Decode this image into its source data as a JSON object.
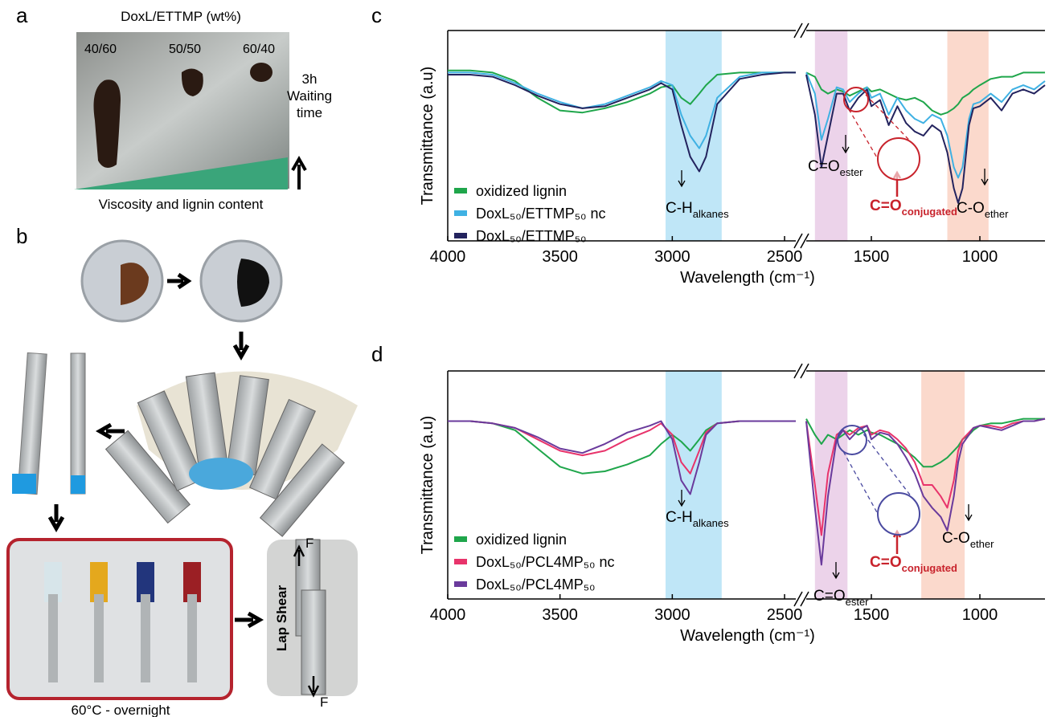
{
  "panels": {
    "a": {
      "label": "a",
      "title": "DoxL/ETTMP (wt%)",
      "samples": [
        "40/60",
        "50/50",
        "60/40"
      ],
      "waiting": [
        "3h",
        "Waiting",
        "time"
      ],
      "gradient": "Viscosity and lignin content"
    },
    "b": {
      "label": "b",
      "cure": "60°C - overnight",
      "test": "Lap Shear",
      "force_top": "F",
      "force_bottom": "F"
    },
    "c": {
      "label": "c"
    },
    "d": {
      "label": "d"
    }
  },
  "chart_data": [
    {
      "type": "line",
      "ylabel": "Transmittance (a.u)",
      "xlabel": "Wavelength (cm⁻¹)",
      "x": [
        4000,
        3900,
        3800,
        3700,
        3600,
        3500,
        3400,
        3300,
        3200,
        3100,
        3050,
        3000,
        2960,
        2920,
        2880,
        2850,
        2800,
        2700,
        2600,
        2500,
        2450,
        2000,
        1800,
        1760,
        1730,
        1700,
        1660,
        1630,
        1600,
        1560,
        1520,
        1500,
        1460,
        1420,
        1380,
        1340,
        1300,
        1260,
        1220,
        1180,
        1150,
        1120,
        1100,
        1080,
        1050,
        1030,
        1000,
        950,
        900,
        850,
        800,
        750,
        700
      ],
      "xlim": [
        [
          4000,
          2450
        ],
        [
          1800,
          700
        ]
      ],
      "xticks": [
        4000,
        3500,
        3000,
        2500,
        1500,
        1000
      ],
      "ylim": [
        0,
        1
      ],
      "bands": [
        {
          "range": [
            3030,
            2780
          ],
          "color": "#bfe6f7"
        },
        {
          "range": [
            1760,
            1610
          ],
          "color": "#ecd3ea"
        },
        {
          "range": [
            1150,
            960
          ],
          "color": "#fbd9cc"
        }
      ],
      "series": [
        {
          "name": "oxidized lignin",
          "color": "#1fa64b",
          "values": [
            0.81,
            0.81,
            0.8,
            0.76,
            0.68,
            0.62,
            0.61,
            0.63,
            0.66,
            0.7,
            0.73,
            0.74,
            0.68,
            0.65,
            0.7,
            0.74,
            0.79,
            0.8,
            0.8,
            0.8,
            0.8,
            null,
            0.8,
            0.78,
            0.72,
            0.7,
            0.72,
            0.71,
            0.69,
            0.71,
            0.73,
            0.71,
            0.72,
            0.7,
            0.68,
            0.67,
            0.68,
            0.66,
            0.62,
            0.6,
            0.61,
            0.63,
            0.65,
            0.68,
            0.7,
            0.72,
            0.74,
            0.77,
            0.78,
            0.78,
            0.8,
            0.8,
            0.8
          ]
        },
        {
          "name": "DoxL₅₀/ETTMP₅₀ nc",
          "color": "#3fb1e3",
          "values": [
            0.8,
            0.8,
            0.79,
            0.75,
            0.7,
            0.66,
            0.63,
            0.65,
            0.69,
            0.73,
            0.76,
            0.74,
            0.6,
            0.5,
            0.44,
            0.5,
            0.68,
            0.78,
            0.8,
            0.8,
            0.8,
            null,
            0.8,
            0.7,
            0.48,
            0.58,
            0.73,
            0.72,
            0.66,
            0.7,
            0.73,
            0.68,
            0.7,
            0.6,
            0.68,
            0.62,
            0.58,
            0.56,
            0.6,
            0.58,
            0.5,
            0.35,
            0.3,
            0.35,
            0.58,
            0.65,
            0.66,
            0.7,
            0.66,
            0.72,
            0.74,
            0.72,
            0.76
          ]
        },
        {
          "name": "DoxL₅₀/ETTMP₅₀",
          "color": "#23235e",
          "values": [
            0.79,
            0.79,
            0.78,
            0.74,
            0.69,
            0.65,
            0.63,
            0.64,
            0.68,
            0.72,
            0.75,
            0.72,
            0.55,
            0.4,
            0.33,
            0.4,
            0.65,
            0.77,
            0.79,
            0.8,
            0.8,
            null,
            0.79,
            0.6,
            0.35,
            0.5,
            0.7,
            0.7,
            0.62,
            0.68,
            0.72,
            0.64,
            0.67,
            0.55,
            0.64,
            0.56,
            0.52,
            0.5,
            0.55,
            0.52,
            0.42,
            0.25,
            0.18,
            0.25,
            0.55,
            0.63,
            0.64,
            0.68,
            0.62,
            0.7,
            0.72,
            0.7,
            0.74
          ]
        }
      ],
      "annotations": [
        {
          "text": "C-H",
          "sub": "alkanes"
        },
        {
          "text": "C=O",
          "sub": "ester"
        },
        {
          "text": "C=O",
          "sub": "conjugated"
        },
        {
          "text": "C-O",
          "sub": "ether"
        }
      ]
    },
    {
      "type": "line",
      "ylabel": "Transmittance (a.u)",
      "xlabel": "Wavelength (cm⁻¹)",
      "x": [
        4000,
        3900,
        3800,
        3700,
        3600,
        3500,
        3400,
        3300,
        3200,
        3100,
        3050,
        3000,
        2960,
        2920,
        2880,
        2850,
        2800,
        2700,
        2600,
        2500,
        2450,
        2000,
        1800,
        1760,
        1730,
        1700,
        1660,
        1630,
        1600,
        1560,
        1520,
        1500,
        1460,
        1420,
        1380,
        1340,
        1300,
        1260,
        1220,
        1180,
        1150,
        1120,
        1100,
        1080,
        1050,
        1030,
        1000,
        950,
        900,
        850,
        800,
        750,
        700
      ],
      "xlim": [
        [
          4000,
          2450
        ],
        [
          1800,
          700
        ]
      ],
      "xticks": [
        4000,
        3500,
        3000,
        2500,
        1500,
        1000
      ],
      "ylim": [
        0,
        1
      ],
      "bands": [
        {
          "range": [
            3030,
            2780
          ],
          "color": "#bfe6f7"
        },
        {
          "range": [
            1760,
            1610
          ],
          "color": "#ecd3ea"
        },
        {
          "range": [
            1270,
            1070
          ],
          "color": "#fbd9cc"
        }
      ],
      "series": [
        {
          "name": "oxidized lignin",
          "color": "#1fa64b",
          "values": [
            0.78,
            0.78,
            0.77,
            0.74,
            0.66,
            0.58,
            0.55,
            0.56,
            0.59,
            0.63,
            0.68,
            0.72,
            0.69,
            0.65,
            0.7,
            0.74,
            0.77,
            0.78,
            0.78,
            0.78,
            0.78,
            null,
            0.79,
            0.72,
            0.68,
            0.72,
            0.7,
            0.72,
            0.74,
            0.72,
            0.74,
            0.73,
            0.72,
            0.7,
            0.68,
            0.65,
            0.62,
            0.58,
            0.58,
            0.6,
            0.62,
            0.65,
            0.67,
            0.7,
            0.72,
            0.74,
            0.76,
            0.77,
            0.77,
            0.78,
            0.79,
            0.79,
            0.79
          ]
        },
        {
          "name": "DoxL₅₀/PCL4MP₅₀ nc",
          "color": "#e8336b",
          "values": [
            0.78,
            0.78,
            0.77,
            0.75,
            0.7,
            0.65,
            0.63,
            0.65,
            0.7,
            0.74,
            0.77,
            0.72,
            0.6,
            0.55,
            0.65,
            0.73,
            0.77,
            0.78,
            0.78,
            0.78,
            0.78,
            null,
            0.78,
            0.5,
            0.28,
            0.55,
            0.72,
            0.74,
            0.72,
            0.75,
            0.76,
            0.72,
            0.74,
            0.73,
            0.7,
            0.66,
            0.6,
            0.5,
            0.5,
            0.45,
            0.4,
            0.52,
            0.65,
            0.7,
            0.73,
            0.75,
            0.76,
            0.76,
            0.75,
            0.77,
            0.78,
            0.78,
            0.79
          ]
        },
        {
          "name": "DoxL₅₀/PCL4MP₅₀",
          "color": "#6a3a9c",
          "values": [
            0.78,
            0.78,
            0.77,
            0.75,
            0.71,
            0.66,
            0.64,
            0.68,
            0.73,
            0.76,
            0.78,
            0.7,
            0.52,
            0.46,
            0.6,
            0.72,
            0.77,
            0.78,
            0.78,
            0.78,
            0.78,
            null,
            0.78,
            0.4,
            0.15,
            0.45,
            0.7,
            0.74,
            0.7,
            0.74,
            0.76,
            0.7,
            0.73,
            0.72,
            0.68,
            0.62,
            0.55,
            0.45,
            0.4,
            0.36,
            0.3,
            0.45,
            0.6,
            0.68,
            0.72,
            0.75,
            0.76,
            0.75,
            0.74,
            0.76,
            0.78,
            0.78,
            0.79
          ]
        }
      ],
      "annotations": [
        {
          "text": "C-H",
          "sub": "alkanes"
        },
        {
          "text": "C=O",
          "sub": "ester"
        },
        {
          "text": "C=O",
          "sub": "conjugated"
        },
        {
          "text": "C-O",
          "sub": "ether"
        }
      ]
    }
  ]
}
